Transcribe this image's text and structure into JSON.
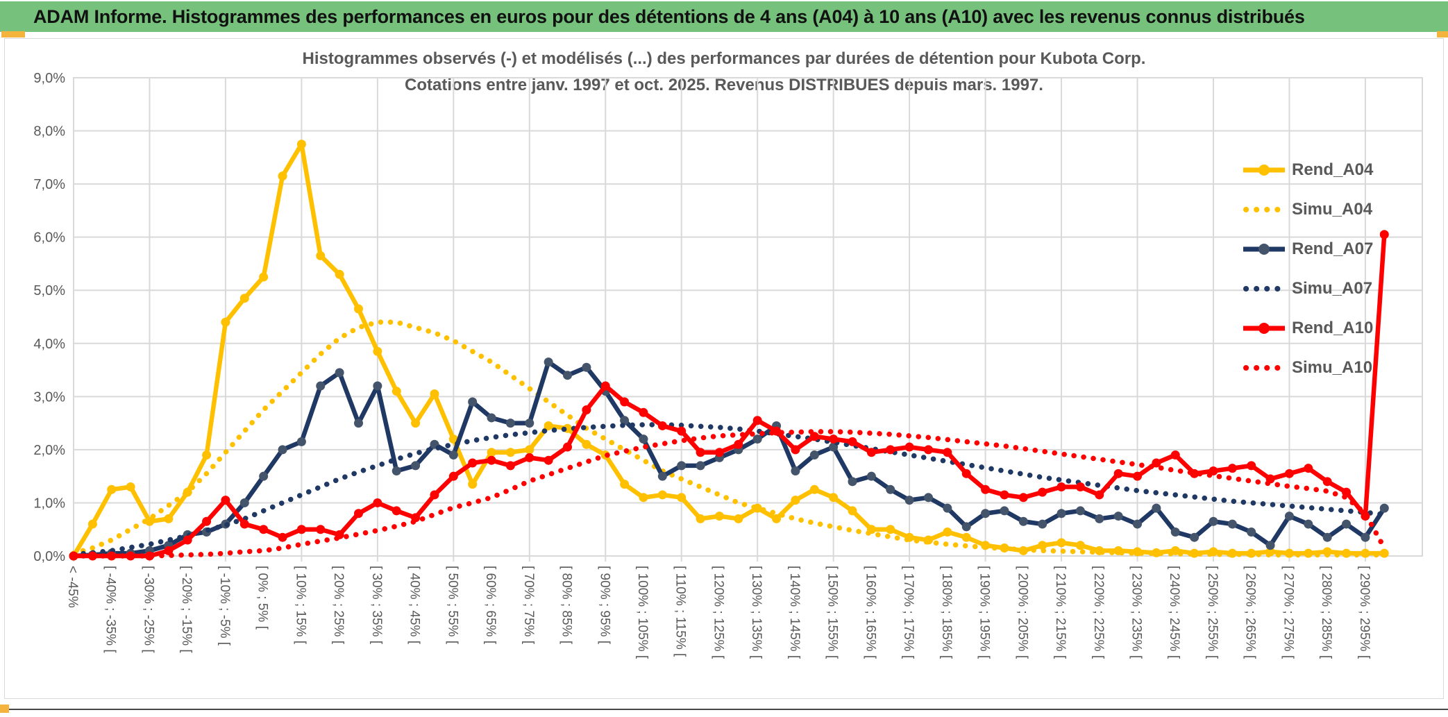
{
  "header": {
    "title": "ADAM Informe. Histogrammes des performances en euros pour des détentions de 4 ans (A04) à 10 ans (A10) avec les revenus connus distribués",
    "bar_color": "#76C17C",
    "accent_color": "#F3B33D"
  },
  "chart": {
    "title_line1": "Histogrammes observés (-) et modélisés (...) des performances par durées de détention pour Kubota Corp.",
    "title_line2": "Cotations entre janv. 1997 et oct. 2025. Revenus DISTRIBUES depuis mars. 1997.",
    "text_color": "#595959",
    "grid_color": "#D9D9D9"
  },
  "chart_data": {
    "type": "line",
    "title": "Histogrammes observés (-) et modélisés (...) des performances par durées de détention pour Kubota Corp. Cotations entre janv. 1997 et oct. 2025. Revenus DISTRIBUES depuis mars. 1997.",
    "xlabel": "",
    "ylabel": "",
    "ylim": [
      0,
      9
    ],
    "y_tick_labels": [
      "0,0%",
      "1,0%",
      "2,0%",
      "3,0%",
      "4,0%",
      "5,0%",
      "6,0%",
      "7,0%",
      "8,0%",
      "9,0%"
    ],
    "n_points": 70,
    "x_axis": {
      "shown_labels": [
        "< -45%",
        "[ -40% ; -35% [",
        "[ -30% ; -25% [",
        "[ -20% ; -15% [",
        "[ -10% ; -5% [",
        "[ 0% ; 5% [",
        "[ 10% ; 15% [",
        "[ 20% ; 25% [",
        "[ 30% ; 35% [",
        "[ 40% ; 45% [",
        "[ 50% ; 55% [",
        "[ 60% ; 65% [",
        "[ 70% ; 75% [",
        "[ 80% ; 85% [",
        "[ 90% ; 95% [",
        "[ 100% ; 105% [",
        "[ 110% ; 115% [",
        "[ 120% ; 125% [",
        "[ 130% ; 135% [",
        "[ 140% ; 145% [",
        "[ 150% ; 155% [",
        "[ 160% ; 165% [",
        "[ 170% ; 175% [",
        "[ 180% ; 185% [",
        "[ 190% ; 195% [",
        "[ 200% ; 205% [",
        "[ 210% ; 215% [",
        "[ 220% ; 225% [",
        "[ 230% ; 235% [",
        "[ 240% ; 245% [",
        "[ 250% ; 255% [",
        "[ 260% ; 265% [",
        "[ 270% ; 275% [",
        "[ 280% ; 285% [",
        "[ 290% ; 295% ["
      ],
      "label_every_n_points": 2,
      "gridline_every_n_points": 4,
      "bin_width_percent": 5
    },
    "legend_position": "right-inside",
    "series": [
      {
        "name": "Rend_A04",
        "color": "#FFC000",
        "marker_color": "#FFC000",
        "style": "solid",
        "values": [
          0,
          0.6,
          1.25,
          1.3,
          0.65,
          0.7,
          1.2,
          1.9,
          4.4,
          4.85,
          5.25,
          7.15,
          7.75,
          5.65,
          5.3,
          4.65,
          3.85,
          3.1,
          2.5,
          3.05,
          2.2,
          1.35,
          1.95,
          1.95,
          2.0,
          2.45,
          2.4,
          2.1,
          1.9,
          1.35,
          1.1,
          1.15,
          1.1,
          0.7,
          0.75,
          0.7,
          0.9,
          0.7,
          1.05,
          1.25,
          1.1,
          0.85,
          0.5,
          0.5,
          0.35,
          0.3,
          0.45,
          0.35,
          0.2,
          0.15,
          0.1,
          0.2,
          0.25,
          0.2,
          0.1,
          0.1,
          0.08,
          0.06,
          0.1,
          0.05,
          0.08,
          0.05,
          0.05,
          0.08,
          0.05,
          0.05,
          0.08,
          0.05,
          0.05,
          0.05
        ]
      },
      {
        "name": "Simu_A04",
        "color": "#FFC000",
        "marker_color": "#FFC000",
        "style": "dotted",
        "values": [
          0.05,
          0.15,
          0.3,
          0.5,
          0.7,
          0.95,
          1.2,
          1.55,
          1.95,
          2.35,
          2.75,
          3.1,
          3.45,
          3.8,
          4.1,
          4.3,
          4.4,
          4.4,
          4.3,
          4.2,
          4.05,
          3.85,
          3.65,
          3.4,
          3.15,
          2.9,
          2.65,
          2.4,
          2.2,
          2.0,
          1.8,
          1.6,
          1.45,
          1.3,
          1.15,
          1.0,
          0.9,
          0.8,
          0.7,
          0.62,
          0.55,
          0.48,
          0.42,
          0.36,
          0.3,
          0.26,
          0.22,
          0.19,
          0.16,
          0.14,
          0.12,
          0.1,
          0.09,
          0.08,
          0.07,
          0.06,
          0.05,
          0.05,
          0.04,
          0.04,
          0.03,
          0.03,
          0.03,
          0.02,
          0.02,
          0.02,
          0.02,
          0.02,
          0.02,
          0.02
        ]
      },
      {
        "name": "Rend_A07",
        "color": "#1F3864",
        "marker_color": "#44546A",
        "style": "solid",
        "values": [
          0,
          0.02,
          0.05,
          0.05,
          0.1,
          0.2,
          0.4,
          0.45,
          0.6,
          1.0,
          1.5,
          2.0,
          2.15,
          3.2,
          3.45,
          2.5,
          3.2,
          1.6,
          1.7,
          2.1,
          1.9,
          2.9,
          2.6,
          2.5,
          2.5,
          3.65,
          3.4,
          3.55,
          3.1,
          2.55,
          2.2,
          1.5,
          1.7,
          1.7,
          1.85,
          2.0,
          2.2,
          2.45,
          1.6,
          1.9,
          2.05,
          1.4,
          1.5,
          1.25,
          1.05,
          1.1,
          0.9,
          0.55,
          0.8,
          0.85,
          0.65,
          0.6,
          0.8,
          0.85,
          0.7,
          0.75,
          0.6,
          0.9,
          0.45,
          0.35,
          0.65,
          0.6,
          0.45,
          0.2,
          0.75,
          0.6,
          0.35,
          0.6,
          0.35,
          0.9
        ]
      },
      {
        "name": "Simu_A07",
        "color": "#1F3864",
        "marker_color": "#1F3864",
        "style": "dotted",
        "values": [
          0.03,
          0.06,
          0.1,
          0.16,
          0.22,
          0.3,
          0.38,
          0.48,
          0.58,
          0.7,
          0.85,
          1.0,
          1.15,
          1.3,
          1.45,
          1.58,
          1.7,
          1.82,
          1.93,
          2.02,
          2.1,
          2.17,
          2.23,
          2.28,
          2.32,
          2.36,
          2.39,
          2.42,
          2.44,
          2.46,
          2.47,
          2.47,
          2.46,
          2.44,
          2.42,
          2.39,
          2.35,
          2.3,
          2.25,
          2.2,
          2.14,
          2.08,
          2.02,
          1.96,
          1.9,
          1.84,
          1.78,
          1.72,
          1.66,
          1.6,
          1.54,
          1.48,
          1.43,
          1.38,
          1.33,
          1.28,
          1.23,
          1.19,
          1.15,
          1.11,
          1.07,
          1.03,
          1.0,
          0.97,
          0.94,
          0.91,
          0.88,
          0.85,
          0.82,
          0.78
        ]
      },
      {
        "name": "Rend_A10",
        "color": "#FF0000",
        "marker_color": "#FF0000",
        "style": "solid",
        "values": [
          0,
          0,
          0,
          0,
          0,
          0.1,
          0.3,
          0.65,
          1.05,
          0.6,
          0.5,
          0.35,
          0.5,
          0.5,
          0.4,
          0.8,
          1.0,
          0.85,
          0.72,
          1.15,
          1.5,
          1.75,
          1.8,
          1.7,
          1.85,
          1.8,
          2.05,
          2.75,
          3.2,
          2.9,
          2.7,
          2.45,
          2.35,
          1.95,
          1.95,
          2.1,
          2.55,
          2.35,
          2.0,
          2.25,
          2.2,
          2.15,
          1.95,
          2.0,
          2.05,
          2.0,
          1.95,
          1.55,
          1.25,
          1.15,
          1.1,
          1.2,
          1.3,
          1.3,
          1.15,
          1.55,
          1.5,
          1.75,
          1.9,
          1.55,
          1.6,
          1.65,
          1.7,
          1.45,
          1.55,
          1.65,
          1.4,
          1.2,
          0.75,
          6.05
        ]
      },
      {
        "name": "Simu_A10",
        "color": "#FF0000",
        "marker_color": "#FF0000",
        "style": "dotted",
        "values": [
          0,
          0,
          0,
          0,
          0,
          0.01,
          0.02,
          0.03,
          0.05,
          0.08,
          0.1,
          0.15,
          0.22,
          0.28,
          0.34,
          0.41,
          0.48,
          0.56,
          0.65,
          0.78,
          0.91,
          1.0,
          1.1,
          1.25,
          1.41,
          1.53,
          1.65,
          1.77,
          1.89,
          1.97,
          2.05,
          2.11,
          2.17,
          2.22,
          2.26,
          2.28,
          2.3,
          2.32,
          2.33,
          2.34,
          2.34,
          2.33,
          2.31,
          2.29,
          2.26,
          2.23,
          2.19,
          2.15,
          2.11,
          2.07,
          2.02,
          1.97,
          1.92,
          1.87,
          1.82,
          1.77,
          1.72,
          1.67,
          1.61,
          1.56,
          1.51,
          1.46,
          1.41,
          1.36,
          1.31,
          1.27,
          1.22,
          1.1,
          0.8,
          0.15
        ]
      }
    ]
  }
}
